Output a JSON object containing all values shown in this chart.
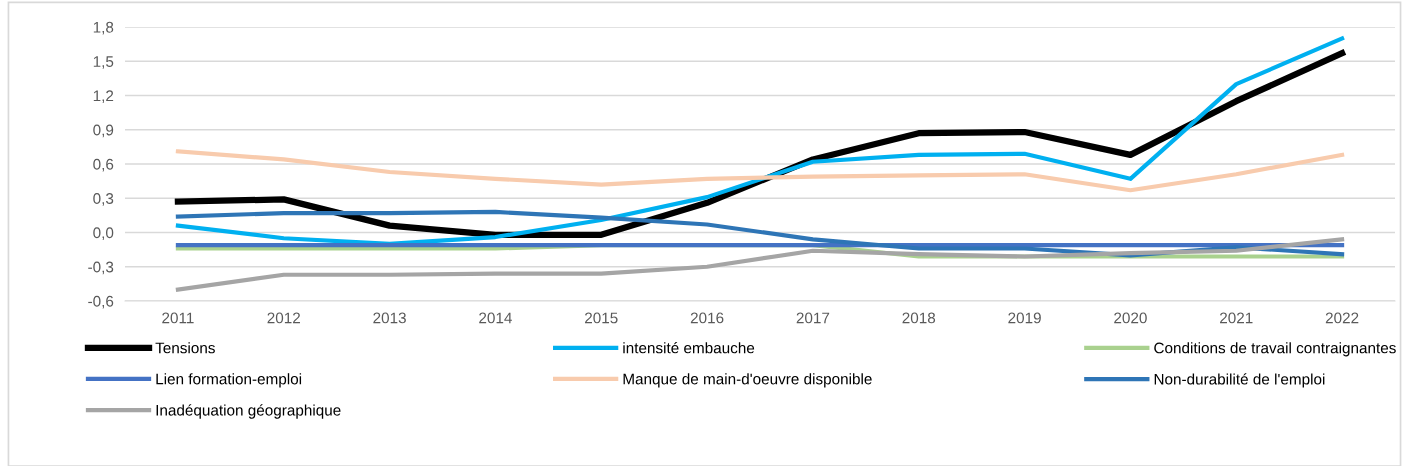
{
  "chart_data": {
    "type": "line",
    "categories": [
      "2011",
      "2012",
      "2013",
      "2014",
      "2015",
      "2016",
      "2017",
      "2018",
      "2019",
      "2020",
      "2021",
      "2022"
    ],
    "ylim": [
      -0.6,
      1.8
    ],
    "yticks": [
      {
        "value": -0.6,
        "label": "-0,6"
      },
      {
        "value": -0.3,
        "label": "-0,3"
      },
      {
        "value": 0,
        "label": "0,0"
      },
      {
        "value": 0.3,
        "label": "0,3"
      },
      {
        "value": 0.6,
        "label": "0,6"
      },
      {
        "value": 0.9,
        "label": "0,9"
      },
      {
        "value": 1.2,
        "label": "1,2"
      },
      {
        "value": 1.5,
        "label": "1,5"
      },
      {
        "value": 1.8,
        "label": "1,8"
      }
    ],
    "grid": "y",
    "legend": "bottom",
    "marker": "none",
    "line_style": "solid",
    "series": [
      {
        "name": "Tensions",
        "color": "#000000",
        "values": [
          0.27,
          0.29,
          0.06,
          -0.02,
          -0.02,
          0.26,
          0.64,
          0.87,
          0.88,
          0.68,
          1.15,
          1.57
        ]
      },
      {
        "name": "intensité embauche",
        "color": "#00b0f0",
        "values": [
          0.06,
          -0.05,
          -0.1,
          -0.04,
          0.11,
          0.31,
          0.62,
          0.68,
          0.69,
          0.47,
          1.3,
          1.7
        ]
      },
      {
        "name": "Conditions de travail contraignantes",
        "color": "#a9d18e",
        "values": [
          -0.14,
          -0.14,
          -0.14,
          -0.14,
          -0.11,
          -0.11,
          -0.11,
          -0.21,
          -0.21,
          -0.21,
          -0.21,
          -0.21
        ]
      },
      {
        "name": "Lien formation-emploi",
        "color": "#4472c4",
        "values": [
          -0.11,
          -0.11,
          -0.11,
          -0.11,
          -0.11,
          -0.11,
          -0.11,
          -0.11,
          -0.11,
          -0.11,
          -0.11,
          -0.11
        ]
      },
      {
        "name": "Manque de main-d'oeuvre disponible",
        "color": "#f8cbad",
        "values": [
          0.71,
          0.64,
          0.53,
          0.47,
          0.42,
          0.47,
          0.49,
          0.5,
          0.51,
          0.37,
          0.51,
          0.68
        ]
      },
      {
        "name": "Non-durabilité de l'emploi",
        "color": "#2e75b6",
        "values": [
          0.14,
          0.17,
          0.17,
          0.18,
          0.13,
          0.07,
          -0.06,
          -0.14,
          -0.14,
          -0.2,
          -0.13,
          -0.19
        ]
      },
      {
        "name": "Inadéquation géographique",
        "color": "#a5a5a5",
        "values": [
          -0.5,
          -0.37,
          -0.37,
          -0.36,
          -0.36,
          -0.3,
          -0.16,
          -0.19,
          -0.21,
          -0.18,
          -0.16,
          -0.06
        ]
      }
    ]
  }
}
